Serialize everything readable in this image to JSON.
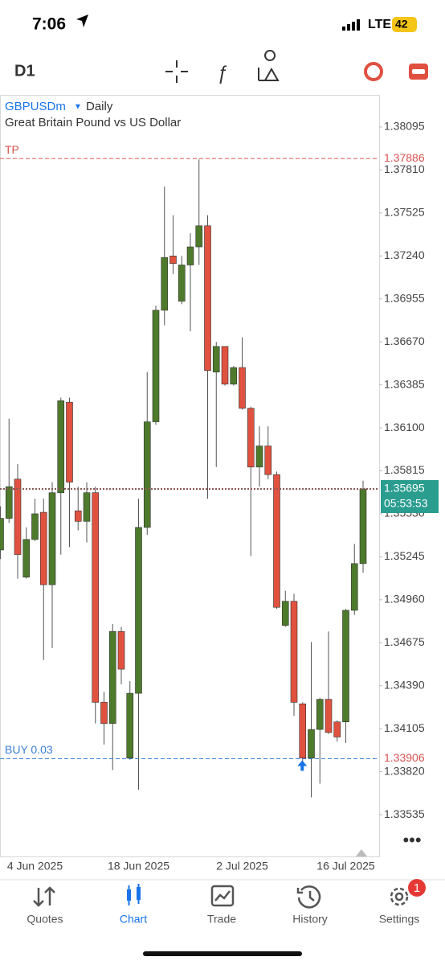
{
  "status_bar": {
    "time": "7:06",
    "network": "LTE",
    "battery": "42"
  },
  "toolbar": {
    "timeframe": "D1"
  },
  "chart_data": {
    "type": "candlestick",
    "symbol": "GBPUSDm",
    "period": "Daily",
    "description": "Great Britain Pound vs US Dollar",
    "categories": [
      null,
      null,
      null,
      null,
      "4 Jun 2025",
      null,
      null,
      null,
      null,
      null,
      null,
      null,
      null,
      null,
      null,
      null,
      "18 Jun 2025",
      null,
      null,
      null,
      null,
      null,
      null,
      null,
      null,
      null,
      null,
      null,
      "2 Jul 2025",
      null,
      null,
      null,
      null,
      null,
      null,
      null,
      null,
      null,
      null,
      null,
      "16 Jul 2025",
      null,
      null
    ],
    "open": [
      1.3529,
      1.355,
      1.3576,
      1.3511,
      1.3536,
      1.3554,
      1.3506,
      1.3567,
      1.3627,
      1.3555,
      1.3548,
      1.3567,
      1.3428,
      1.3414,
      1.3475,
      1.3391,
      1.3434,
      1.3544,
      1.3614,
      1.3688,
      1.3724,
      1.3694,
      1.3718,
      1.373,
      1.3744,
      1.3647,
      1.3664,
      1.3639,
      1.365,
      1.3623,
      1.3584,
      1.3598,
      1.3579,
      1.3479,
      1.3495,
      1.3427,
      1.3391,
      1.341,
      1.343,
      1.3415,
      1.3415,
      1.3489,
      1.352
    ],
    "high": [
      1.3558,
      1.3616,
      1.3586,
      1.3544,
      1.3563,
      1.3563,
      1.3574,
      1.363,
      1.363,
      1.3571,
      1.3574,
      1.3571,
      1.3435,
      1.348,
      1.3478,
      1.3442,
      1.3563,
      1.3647,
      1.3691,
      1.377,
      1.3751,
      1.3724,
      1.3739,
      1.3788,
      1.3751,
      1.3667,
      1.3664,
      1.3651,
      1.367,
      1.3624,
      1.3611,
      1.3611,
      1.3581,
      1.3502,
      1.35,
      1.3428,
      1.3468,
      1.3431,
      1.3475,
      1.3416,
      1.349,
      1.3533,
      1.3575
    ],
    "low": [
      1.3523,
      1.3547,
      1.351,
      1.351,
      1.3535,
      1.3456,
      1.3464,
      1.3526,
      1.3531,
      1.3542,
      1.3534,
      1.3414,
      1.34,
      1.3383,
      1.344,
      1.339,
      1.337,
      1.3539,
      1.3612,
      1.3678,
      1.3712,
      1.3692,
      1.3674,
      1.3718,
      1.3563,
      1.3584,
      1.3638,
      1.3638,
      1.3622,
      1.3525,
      1.3571,
      1.3576,
      1.349,
      1.3478,
      1.3419,
      1.3387,
      1.3365,
      1.3374,
      1.3407,
      1.3402,
      1.3401,
      1.3486,
      1.3514
    ],
    "close": [
      1.355,
      1.3571,
      1.3526,
      1.3536,
      1.3553,
      1.3506,
      1.3567,
      1.3628,
      1.3574,
      1.3548,
      1.3567,
      1.3428,
      1.3414,
      1.3475,
      1.345,
      1.3434,
      1.3544,
      1.3614,
      1.3688,
      1.3723,
      1.3719,
      1.3718,
      1.373,
      1.3744,
      1.3648,
      1.3664,
      1.3639,
      1.365,
      1.3623,
      1.3584,
      1.3598,
      1.3579,
      1.3491,
      1.3495,
      1.3428,
      1.3391,
      1.341,
      1.343,
      1.3408,
      1.3405,
      1.3489,
      1.352,
      1.35695
    ],
    "up_color": "#4e7a2b",
    "down_color": "#e0523f",
    "ylim": [
      1.33258,
      1.38308
    ],
    "yticks": [
      1.38095,
      {
        "value": 1.3781,
        "label": "1.37810"
      },
      1.37525,
      {
        "value": 1.3724,
        "label": "1.37240"
      },
      1.36955,
      {
        "value": 1.3667,
        "label": "1.36670"
      },
      1.36385,
      {
        "value": 1.361,
        "label": "1.36100"
      },
      1.35815,
      {
        "value": 1.3553,
        "label": "1.35530"
      },
      1.35245,
      {
        "value": 1.3496,
        "label": "1.34960"
      },
      1.34675,
      {
        "value": 1.3439,
        "label": "1.34390"
      },
      1.34105,
      {
        "value": 1.3382,
        "label": "1.33820"
      },
      1.33535
    ],
    "levels": [
      {
        "label": "TP",
        "value": 1.37886,
        "color": "#d9534f"
      },
      {
        "label": "BUY 0.03",
        "value": 1.33906,
        "color": "#3d7fd9"
      }
    ],
    "last_price": 1.35695,
    "timer": "05:53:53",
    "last_color": "#2a9d8f"
  },
  "tab_bar": {
    "tabs": [
      {
        "label": "Quotes"
      },
      {
        "label": "Chart"
      },
      {
        "label": "Trade"
      },
      {
        "label": "History"
      },
      {
        "label": "Settings"
      }
    ],
    "badge": "1"
  }
}
